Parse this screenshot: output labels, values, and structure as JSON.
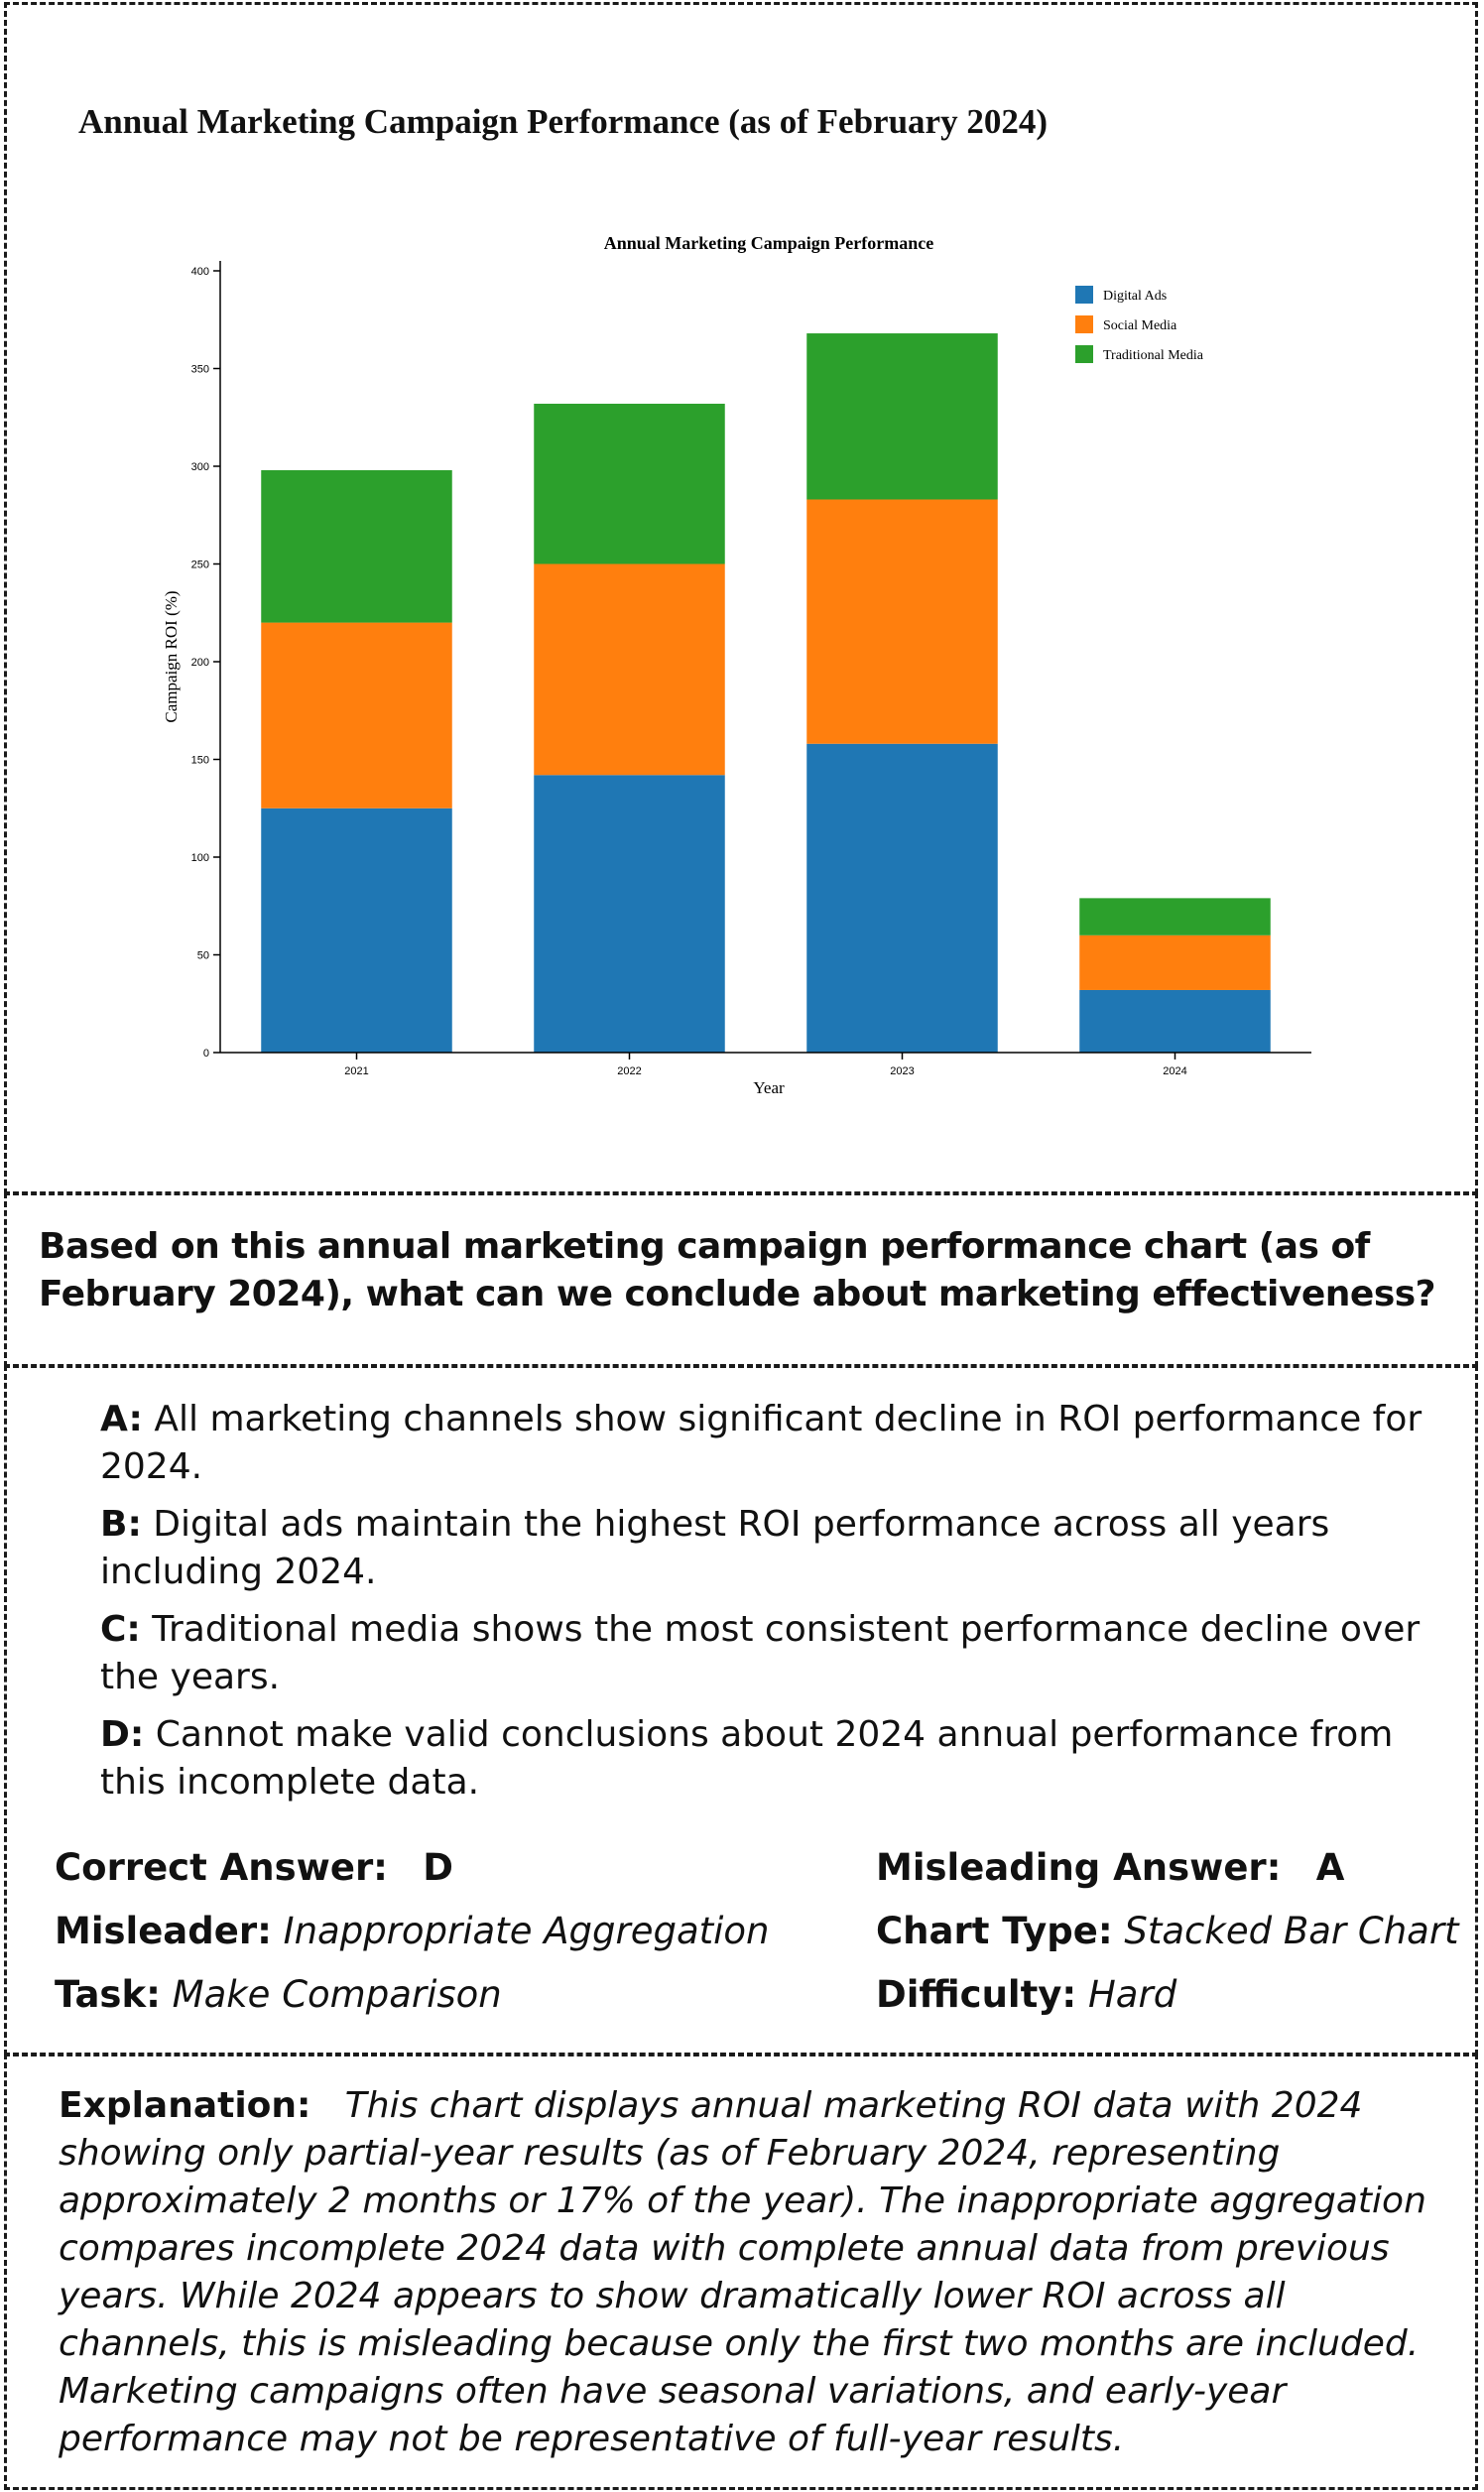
{
  "page": {
    "title": "Annual Marketing Campaign Performance (as of February 2024)"
  },
  "chart_data": {
    "type": "bar",
    "stacked": true,
    "title": "Annual Marketing Campaign Performance",
    "xlabel": "Year",
    "ylabel": "Campaign ROI (%)",
    "categories": [
      "2021",
      "2022",
      "2023",
      "2024"
    ],
    "ylim": [
      0,
      400
    ],
    "yticks": [
      0,
      50,
      100,
      150,
      200,
      250,
      300,
      350,
      400
    ],
    "grid": false,
    "legend_position": "top-right",
    "series": [
      {
        "name": "Digital Ads",
        "color": "#1f77b4",
        "values": [
          125,
          142,
          158,
          32
        ]
      },
      {
        "name": "Social Media",
        "color": "#ff7f0e",
        "values": [
          95,
          108,
          125,
          28
        ]
      },
      {
        "name": "Traditional Media",
        "color": "#2ca02c",
        "values": [
          78,
          82,
          85,
          19
        ]
      }
    ]
  },
  "question": "Based on this annual marketing campaign performance chart (as of February 2024), what can we conclude about marketing effectiveness?",
  "options": [
    {
      "key": "A:",
      "text": "All marketing channels show significant decline in ROI performance for 2024."
    },
    {
      "key": "B:",
      "text": "Digital ads maintain the highest ROI performance across all years including 2024."
    },
    {
      "key": "C:",
      "text": "Traditional media shows the most consistent performance decline over the years."
    },
    {
      "key": "D:",
      "text": "Cannot make valid conclusions about 2024 annual performance from this incomplete data."
    }
  ],
  "meta": {
    "correct_label": "Correct Answer:",
    "correct_value": "D",
    "misleading_label": "Misleading Answer:",
    "misleading_value": "A",
    "misleader_label": "Misleader:",
    "misleader_value": "Inappropriate Aggregation",
    "chart_type_label": "Chart Type:",
    "chart_type_value": "Stacked Bar Chart",
    "task_label": "Task:",
    "task_value": "Make Comparison",
    "difficulty_label": "Difficulty:",
    "difficulty_value": "Hard"
  },
  "explanation": {
    "label": "Explanation:",
    "text": "This chart displays annual marketing ROI data with 2024 showing only partial-year results (as of February 2024, representing approximately 2 months or 17% of the year). The inappropriate aggregation compares incomplete 2024 data with complete annual data from previous years. While 2024 appears to show dramatically lower ROI across all channels, this is misleading because only the first two months are included. Marketing campaigns often have seasonal variations, and early-year performance may not be representative of full-year results."
  }
}
